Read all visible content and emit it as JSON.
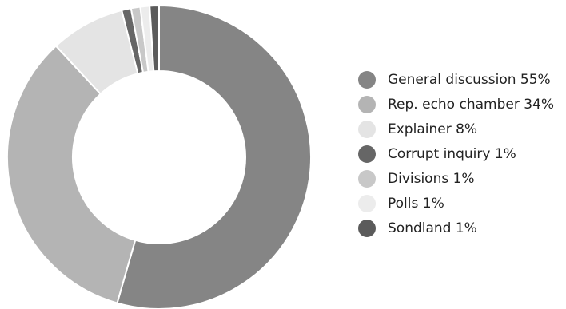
{
  "chart_data": {
    "type": "pie",
    "donut": true,
    "title": "",
    "legend_position": "right",
    "slices": [
      {
        "label": "General discussion 55%",
        "category": "General discussion",
        "value": 55,
        "color": "#858585"
      },
      {
        "label": "Rep. echo chamber 34%",
        "category": "Rep. echo chamber",
        "value": 34,
        "color": "#b4b4b4"
      },
      {
        "label": "Explainer 8%",
        "category": "Explainer",
        "value": 8,
        "color": "#e4e4e4"
      },
      {
        "label": "Corrupt inquiry 1%",
        "category": "Corrupt inquiry",
        "value": 1,
        "color": "#666666"
      },
      {
        "label": "Divisions 1%",
        "category": "Divisions",
        "value": 1,
        "color": "#c8c8c8"
      },
      {
        "label": "Polls 1%",
        "category": "Polls",
        "value": 1,
        "color": "#ececec"
      },
      {
        "label": "Sondland 1%",
        "category": "Sondland",
        "value": 1,
        "color": "#5b5b5b"
      }
    ]
  }
}
